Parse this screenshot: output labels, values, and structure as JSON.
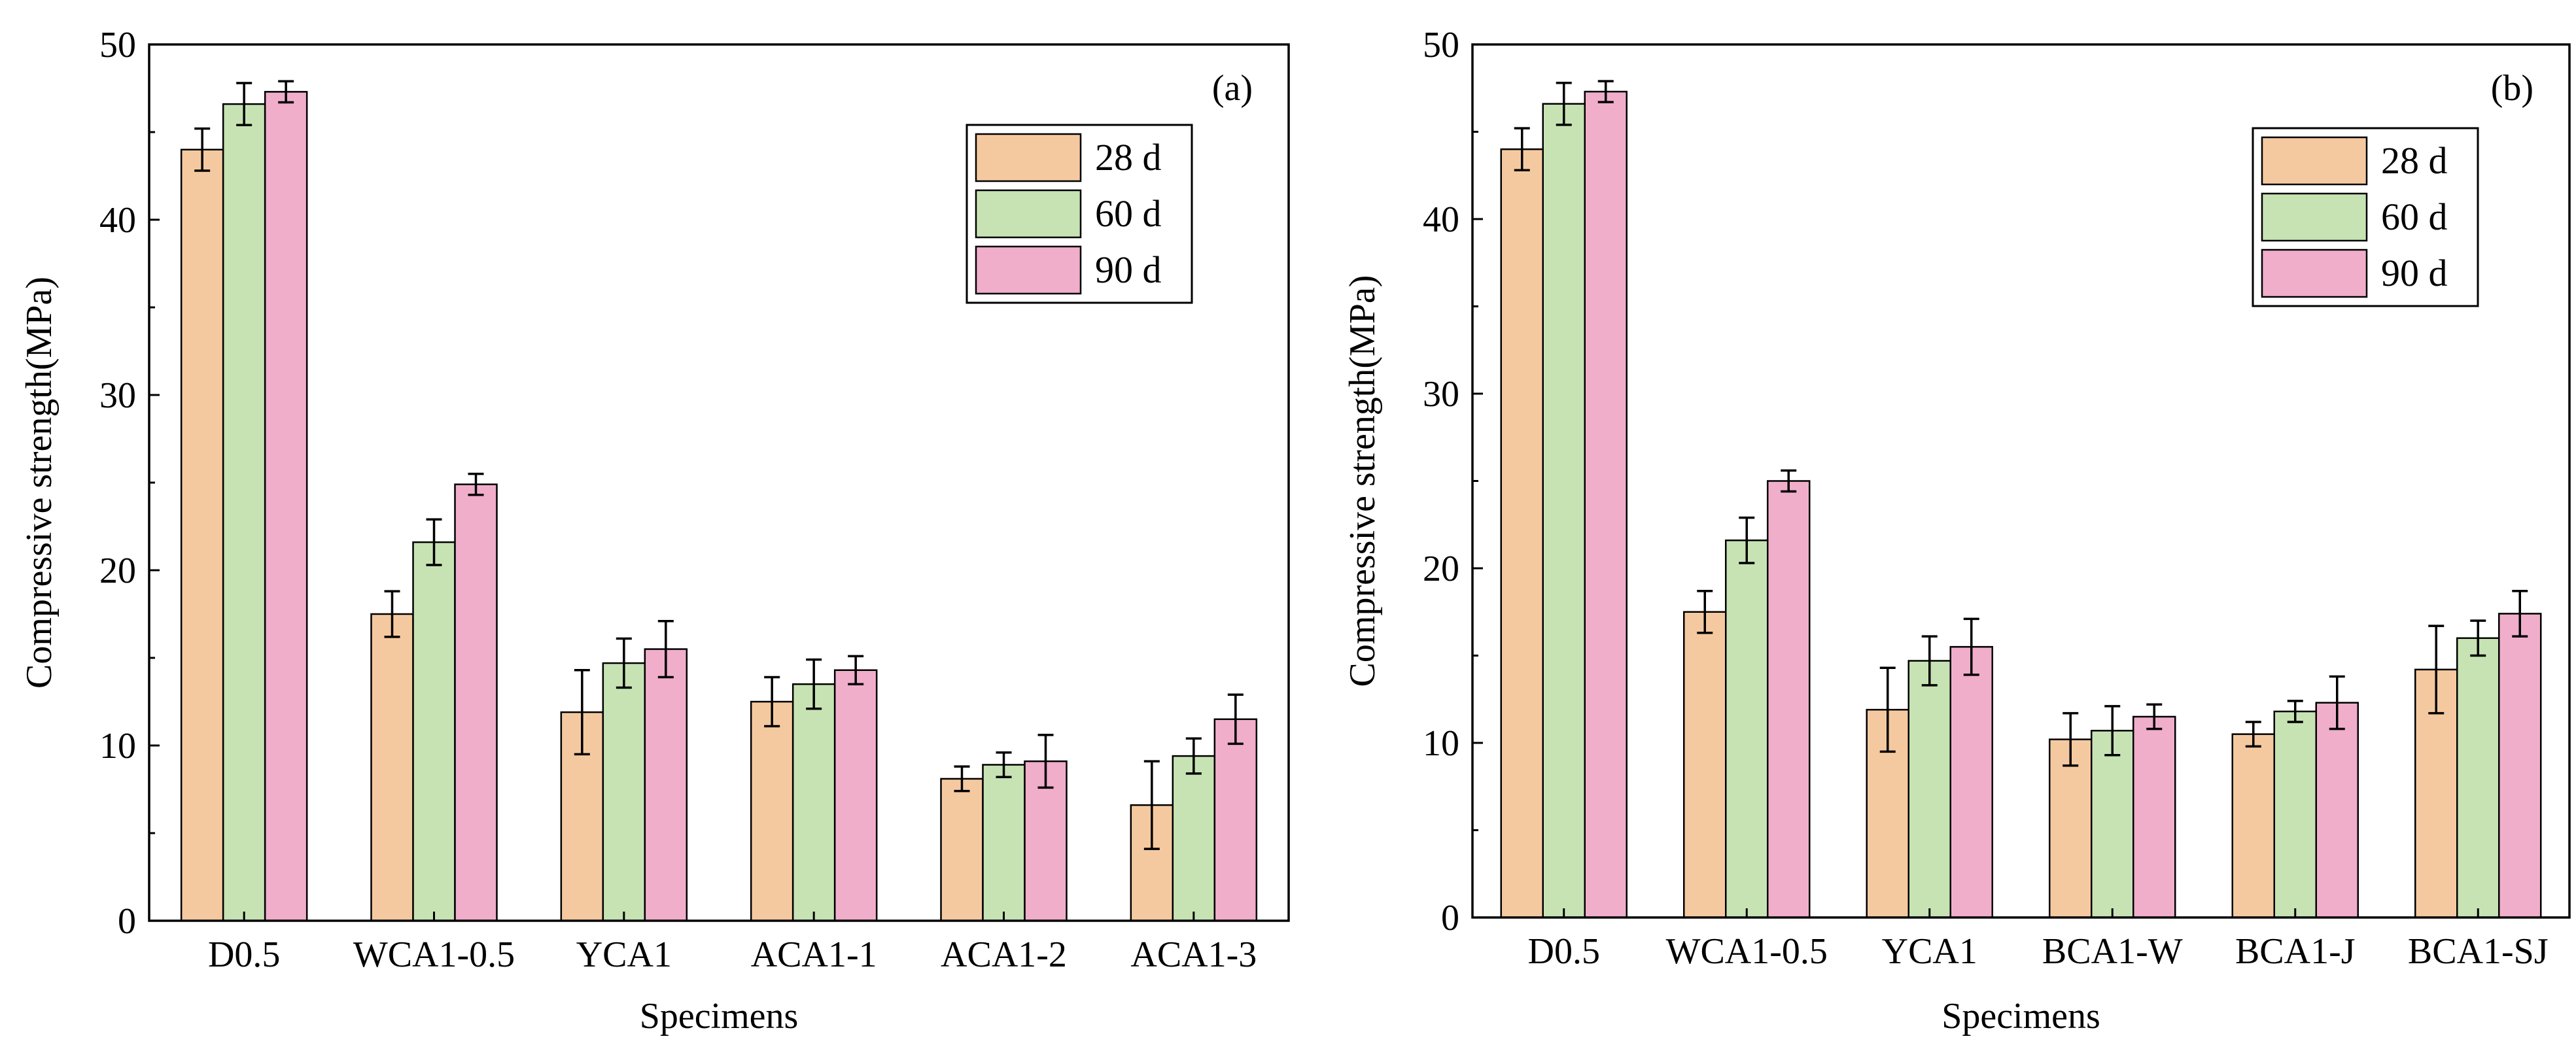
{
  "chart_data": [
    {
      "type": "bar",
      "panel_label": "(a)",
      "xlabel": "Specimens",
      "ylabel": "Compressive strength(MPa)",
      "ylim": [
        0,
        50
      ],
      "yticks": [
        "0",
        "10",
        "20",
        "30",
        "40",
        "50"
      ],
      "legend_position": "top-right",
      "categories": [
        "D0.5",
        "WCA1-0.5",
        "YCA1",
        "ACA1-1",
        "ACA1-2",
        "ACA1-3"
      ],
      "series": [
        {
          "name": "28 d",
          "color": "#F5C9A0",
          "values": [
            44.0,
            17.5,
            11.9,
            12.5,
            8.1,
            6.6
          ],
          "errors": [
            1.2,
            1.3,
            2.4,
            1.4,
            0.7,
            2.5
          ]
        },
        {
          "name": "60 d",
          "color": "#C7E3B4",
          "values": [
            46.6,
            21.6,
            14.7,
            13.5,
            8.9,
            9.4
          ],
          "errors": [
            1.2,
            1.3,
            1.4,
            1.4,
            0.7,
            1.0
          ]
        },
        {
          "name": "90 d",
          "color": "#F0AECB",
          "values": [
            47.3,
            24.9,
            15.5,
            14.3,
            9.1,
            11.5
          ],
          "errors": [
            0.6,
            0.6,
            1.6,
            0.8,
            1.5,
            1.4
          ]
        }
      ]
    },
    {
      "type": "bar",
      "panel_label": "(b)",
      "xlabel": "Specimens",
      "ylabel": "Compressive strength(MPa)",
      "ylim": [
        0,
        50
      ],
      "yticks": [
        "0",
        "10",
        "20",
        "30",
        "40",
        "50"
      ],
      "legend_position": "top-right",
      "categories": [
        "D0.5",
        "WCA1-0.5",
        "YCA1",
        "BCA1-W",
        "BCA1-J",
        "BCA1-SJ"
      ],
      "series": [
        {
          "name": "28 d",
          "color": "#F5C9A0",
          "values": [
            44.0,
            17.5,
            11.9,
            10.2,
            10.5,
            14.2
          ],
          "errors": [
            1.2,
            1.2,
            2.4,
            1.5,
            0.7,
            2.5
          ]
        },
        {
          "name": "60 d",
          "color": "#C7E3B4",
          "values": [
            46.6,
            21.6,
            14.7,
            10.7,
            11.8,
            16.0
          ],
          "errors": [
            1.2,
            1.3,
            1.4,
            1.4,
            0.6,
            1.0
          ]
        },
        {
          "name": "90 d",
          "color": "#F0AECB",
          "values": [
            47.3,
            25.0,
            15.5,
            11.5,
            12.3,
            17.4
          ],
          "errors": [
            0.6,
            0.6,
            1.6,
            0.7,
            1.5,
            1.3
          ]
        }
      ]
    }
  ]
}
